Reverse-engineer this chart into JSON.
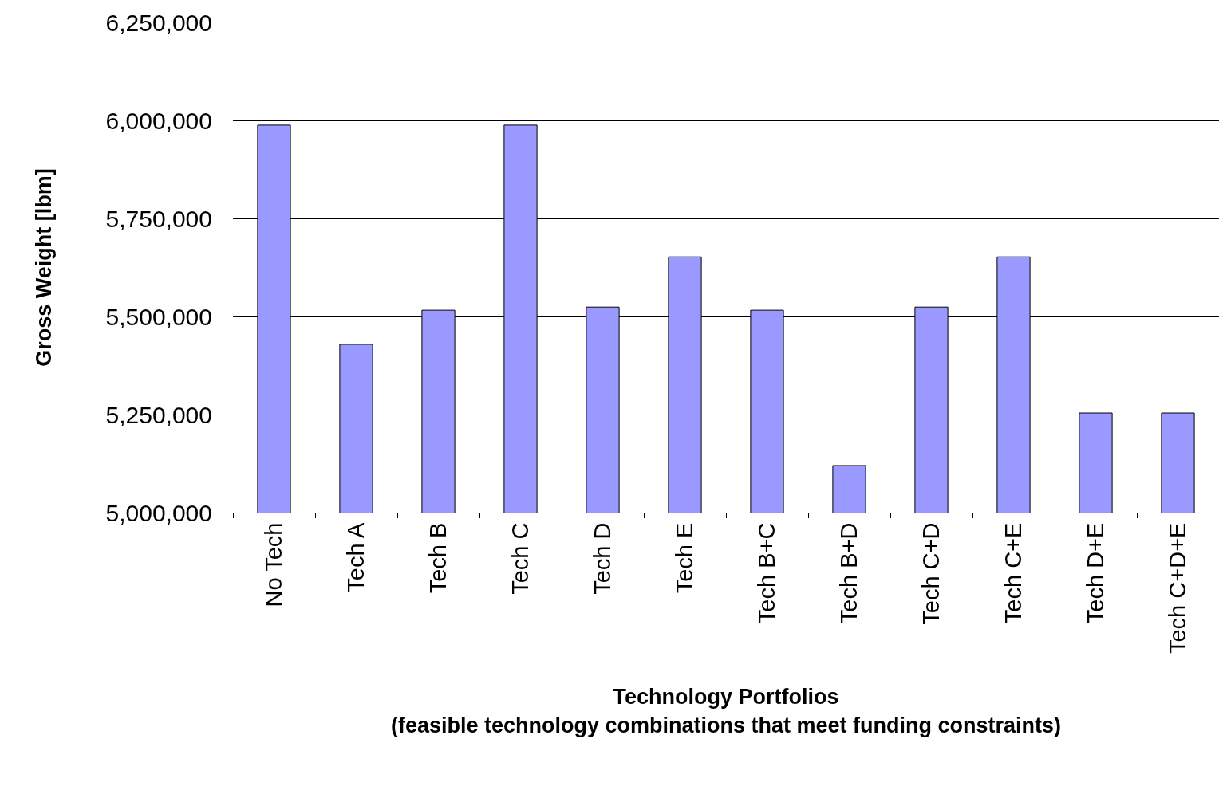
{
  "chart_data": {
    "type": "bar",
    "xlabel": "Technology Portfolios\n(feasible technology combinations that meet funding constraints)",
    "ylabel": "Gross Weight [lbm]",
    "categories": [
      "No Tech",
      "Tech A",
      "Tech B",
      "Tech C",
      "Tech D",
      "Tech E",
      "Tech B+C",
      "Tech B+D",
      "Tech C+D",
      "Tech C+E",
      "Tech D+E",
      "Tech C+D+E"
    ],
    "values": [
      5988000,
      5429000,
      5516000,
      5988000,
      5524000,
      5652000,
      5516000,
      5120000,
      5524000,
      5652000,
      5254000,
      5254000
    ],
    "color": "#9999ff",
    "ylim": [
      5000000,
      6250000
    ],
    "yticks": [
      {
        "value": 5000000,
        "label": "5,000,000"
      },
      {
        "value": 5250000,
        "label": "5,250,000"
      },
      {
        "value": 5500000,
        "label": "5,500,000"
      },
      {
        "value": 5750000,
        "label": "5,750,000"
      },
      {
        "value": 6000000,
        "label": "6,000,000"
      },
      {
        "value": 6250000,
        "label": "6,250,000"
      }
    ],
    "grid": "y",
    "legend": false
  }
}
